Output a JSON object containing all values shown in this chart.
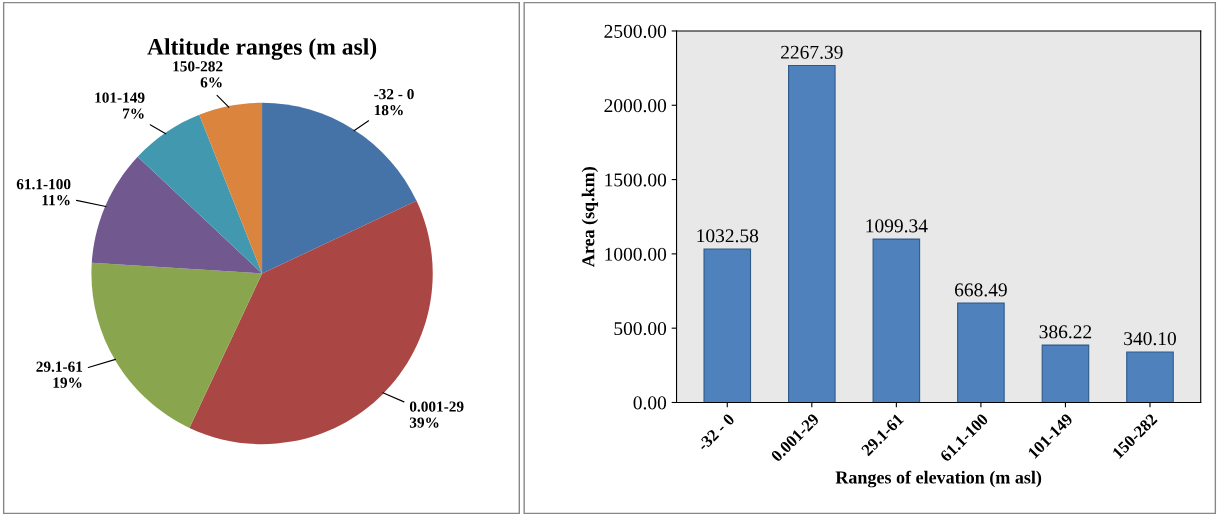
{
  "chart_data": [
    {
      "type": "pie",
      "title": "Altitude ranges (m asl)",
      "categories": [
        "-32 - 0",
        "0.001-29",
        "29.1-61",
        "61.1-100",
        "101-149",
        "150-282"
      ],
      "values": [
        18,
        39,
        19,
        11,
        7,
        6
      ],
      "colors": [
        "#4572a7",
        "#aa4643",
        "#89a54e",
        "#71588f",
        "#4198af",
        "#db843d"
      ],
      "value_labels": [
        "18%",
        "39%",
        "19%",
        "11%",
        "7%",
        "6%"
      ],
      "legend": false
    },
    {
      "type": "bar",
      "xlabel": "Ranges of elevation (m asl)",
      "ylabel": "Area (sq.km)",
      "categories": [
        "-32 - 0",
        "0.001-29",
        "29.1-61",
        "61.1-100",
        "101-149",
        "150-282"
      ],
      "values": [
        1032.58,
        2267.39,
        1099.34,
        668.49,
        386.22,
        340.1
      ],
      "color": "#4f81bd",
      "value_labels": [
        "1032.58",
        "2267.39",
        "1099.34",
        "668.49",
        "386.22",
        "340.10"
      ],
      "ylim": [
        0,
        2500
      ],
      "yticks": [
        {
          "value": 0,
          "label": "0.00"
        },
        {
          "value": 500,
          "label": "500.00"
        },
        {
          "value": 1000,
          "label": "1000.00"
        },
        {
          "value": 1500,
          "label": "1500.00"
        },
        {
          "value": 2000,
          "label": "2000.00"
        },
        {
          "value": 2500,
          "label": "2500.00"
        }
      ],
      "grid": false,
      "legend": false
    }
  ]
}
